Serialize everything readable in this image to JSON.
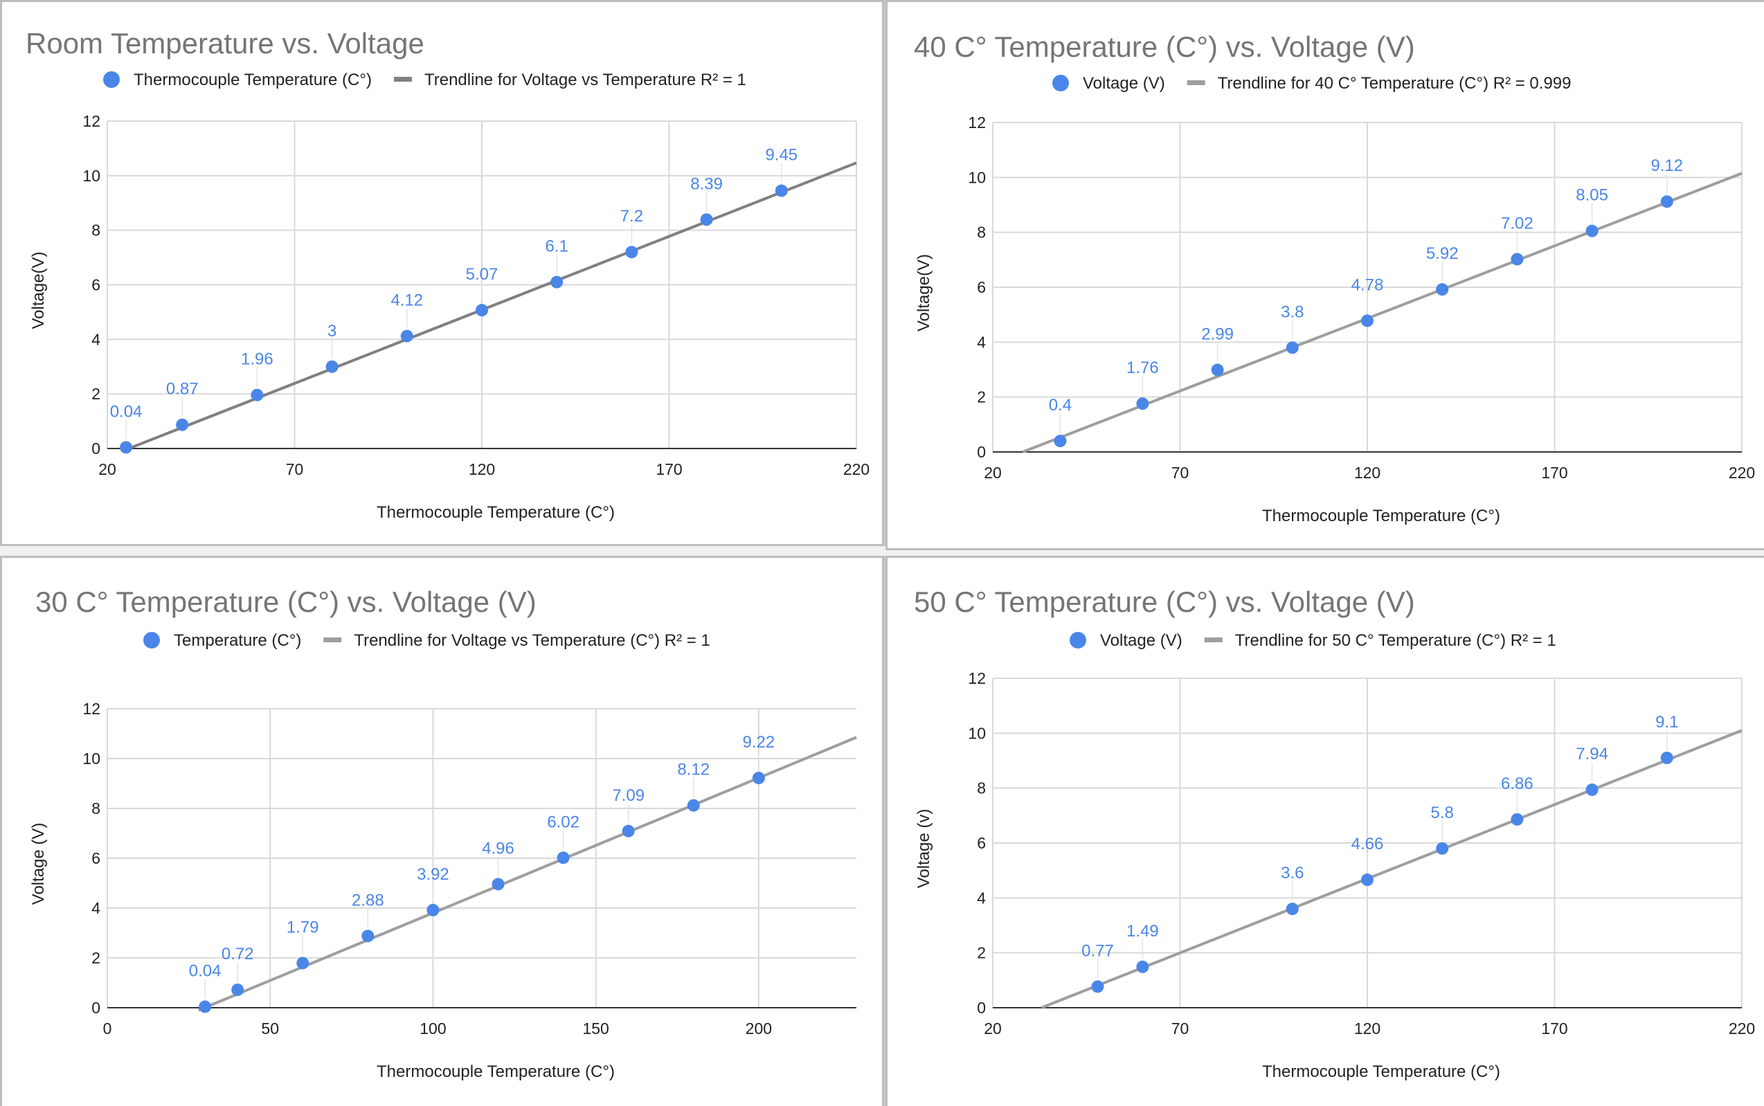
{
  "colors": {
    "point": "#4a86e8",
    "label": "#4a86e8",
    "trend_dark": "#808080",
    "trend_light": "#9e9e9e",
    "grid": "#d9d9d9",
    "title": "#757575"
  },
  "chart_data": [
    {
      "type": "scatter",
      "title": "Room Temperature vs. Voltage",
      "legend": {
        "position": "top",
        "points_label": "Thermocouple Temperature (C°)",
        "trend_label": "Trendline for Voltage vs Temperature R² = 1"
      },
      "xlabel": "Thermocouple Temperature (C°)",
      "ylabel": "Voltage(V)",
      "xlim": [
        20,
        220
      ],
      "ylim": [
        0,
        12
      ],
      "xticks": [
        20,
        70,
        120,
        170,
        220
      ],
      "yticks": [
        0,
        2,
        4,
        6,
        8,
        10,
        12
      ],
      "grid": true,
      "series": [
        {
          "x": [
            25,
            40,
            60,
            80,
            100,
            120,
            140,
            160,
            180,
            200
          ],
          "y": [
            0.04,
            0.87,
            1.96,
            3,
            4.12,
            5.07,
            6.1,
            7.2,
            8.39,
            9.45
          ],
          "labels": [
            "0.04",
            "0.87",
            "1.96",
            "3",
            "4.12",
            "5.07",
            "6.1",
            "7.2",
            "8.39",
            "9.45"
          ]
        }
      ],
      "trendline": {
        "x": [
          25,
          220
        ],
        "y": [
          -0.04,
          10.47
        ],
        "color": "trend_dark"
      }
    },
    {
      "type": "scatter",
      "title": "40 C° Temperature (C°) vs. Voltage (V)",
      "legend": {
        "position": "top",
        "points_label": "Voltage (V)",
        "trend_label": "Trendline for 40 C° Temperature (C°) R² = 0.999"
      },
      "xlabel": "Thermocouple Temperature (C°)",
      "ylabel": "Voltage(V)",
      "xlim": [
        20,
        220
      ],
      "ylim": [
        0,
        12
      ],
      "xticks": [
        20,
        70,
        120,
        170,
        220
      ],
      "yticks": [
        0,
        2,
        4,
        6,
        8,
        10,
        12
      ],
      "grid": true,
      "series": [
        {
          "x": [
            38,
            60,
            80,
            100,
            120,
            140,
            160,
            180,
            200
          ],
          "y": [
            0.4,
            1.76,
            2.99,
            3.8,
            4.78,
            5.92,
            7.02,
            8.05,
            9.12
          ],
          "labels": [
            "0.4",
            "1.76",
            "2.99",
            "3.8",
            "4.78",
            "5.92",
            "7.02",
            "8.05",
            "9.12"
          ]
        }
      ],
      "trendline": {
        "x": [
          28,
          220
        ],
        "y": [
          0,
          10.15
        ],
        "color": "trend_light"
      }
    },
    {
      "type": "scatter",
      "title": "30 C° Temperature (C°) vs. Voltage (V)",
      "legend": {
        "position": "top",
        "points_label": "Temperature (C°)",
        "trend_label": "Trendline for Voltage vs Temperature (C°) R² = 1"
      },
      "xlabel": "Thermocouple Temperature (C°)",
      "ylabel": "Voltage (V)",
      "xlim": [
        0,
        230
      ],
      "ylim": [
        0,
        12
      ],
      "xticks": [
        0,
        50,
        100,
        150,
        200
      ],
      "yticks": [
        0,
        2,
        4,
        6,
        8,
        10,
        12
      ],
      "grid": true,
      "series": [
        {
          "x": [
            30,
            40,
            60,
            80,
            100,
            120,
            140,
            160,
            180,
            200
          ],
          "y": [
            0.04,
            0.72,
            1.79,
            2.88,
            3.92,
            4.96,
            6.02,
            7.09,
            8.12,
            9.22
          ],
          "labels": [
            "0.04",
            "0.72",
            "1.79",
            "2.88",
            "3.92",
            "4.96",
            "6.02",
            "7.09",
            "8.12",
            "9.22"
          ]
        }
      ],
      "trendline": {
        "x": [
          28,
          230
        ],
        "y": [
          -0.1,
          10.85
        ],
        "color": "trend_light"
      }
    },
    {
      "type": "scatter",
      "title": "50 C° Temperature (C°) vs. Voltage (V)",
      "legend": {
        "position": "top",
        "points_label": "Voltage (V)",
        "trend_label": "Trendline for 50 C° Temperature (C°) R² = 1"
      },
      "xlabel": "Thermocouple Temperature (C°)",
      "ylabel": "Voltage (v)",
      "xlim": [
        20,
        220
      ],
      "ylim": [
        0,
        12
      ],
      "xticks": [
        20,
        70,
        120,
        170,
        220
      ],
      "yticks": [
        0,
        2,
        4,
        6,
        8,
        10,
        12
      ],
      "grid": true,
      "series": [
        {
          "x": [
            48,
            60,
            100,
            120,
            140,
            160,
            180,
            200
          ],
          "y": [
            0.77,
            1.49,
            3.6,
            4.66,
            5.8,
            6.86,
            7.94,
            9.1
          ],
          "labels": [
            "0.77",
            "1.49",
            "3.6",
            "4.66",
            "5.8",
            "6.86",
            "7.94",
            "9.1"
          ]
        }
      ],
      "trendline": {
        "x": [
          33,
          220
        ],
        "y": [
          0,
          10.1
        ],
        "color": "trend_light"
      }
    }
  ]
}
